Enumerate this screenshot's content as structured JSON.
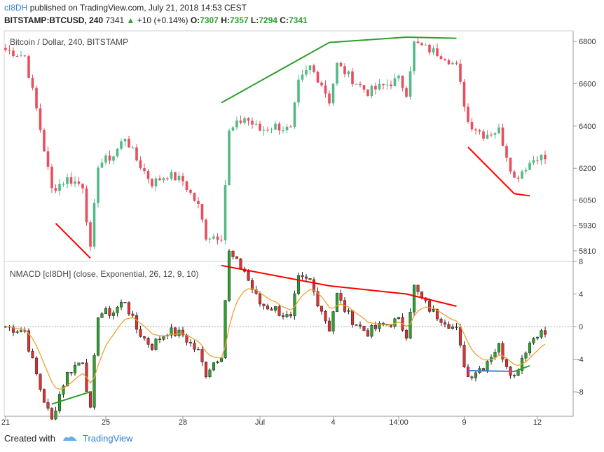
{
  "header": {
    "author": "cI8DH",
    "published_text": "published on TradingView.com, July 21, 2018 14:53 CEST",
    "symbol": "BITSTAMP:BTCUSD, 240",
    "last": "7341",
    "change": "+10 (+0.14%)",
    "o_label": "O:",
    "o": "7307",
    "h_label": "H:",
    "h": "7357",
    "l_label": "L:",
    "l": "7294",
    "c_label": "C:",
    "c": "7341"
  },
  "footer": {
    "created_with": "Created with",
    "brand": "TradingView"
  },
  "chart_data": [
    {
      "type": "candlestick",
      "title": "Bitcoin / Dollar, 240, BITSTAMP",
      "y_ticks": [
        5810,
        5930,
        6050,
        6200,
        6400,
        6600,
        6800
      ],
      "ylim": [
        5760,
        6850
      ],
      "x_ticks": [
        "21",
        "25",
        "28",
        "Jul",
        "4",
        "14:00",
        "9",
        "12"
      ],
      "trendlines": [
        {
          "color": "#ff0000",
          "from": [
            13,
            5940
          ],
          "to": [
            22,
            5775
          ]
        },
        {
          "color": "#2ca02c",
          "from": [
            56,
            6510
          ],
          "to": [
            84,
            6795
          ]
        },
        {
          "color": "#2ca02c",
          "from": [
            84,
            6795
          ],
          "to": [
            104,
            6820
          ]
        },
        {
          "color": "#2ca02c",
          "from": [
            104,
            6820
          ],
          "to": [
            117,
            6815
          ]
        },
        {
          "color": "#ff0000",
          "from": [
            120,
            6300
          ],
          "to": [
            132,
            6080
          ]
        },
        {
          "color": "#ff0000",
          "from": [
            132,
            6080
          ],
          "to": [
            136,
            6070
          ]
        }
      ]
    },
    {
      "type": "indicator",
      "title": "NMACD [cI8DH] (close, Exponential, 26, 12, 9, 10)",
      "y_ticks": [
        -8,
        -4,
        0,
        4,
        8
      ],
      "ylim": [
        -11,
        8
      ],
      "zero_line": 0,
      "trendlines": [
        {
          "color": "#ff0000",
          "from": [
            56,
            7.5
          ],
          "to": [
            84,
            5.0
          ]
        },
        {
          "color": "#ff0000",
          "from": [
            84,
            5.0
          ],
          "to": [
            104,
            4.0
          ]
        },
        {
          "color": "#ff0000",
          "from": [
            104,
            4.0
          ],
          "to": [
            117,
            2.5
          ]
        },
        {
          "color": "#2ca02c",
          "from": [
            12,
            -9.5
          ],
          "to": [
            22,
            -8.0
          ]
        },
        {
          "color": "#4a7fd4",
          "from": [
            120,
            -5.4
          ],
          "to": [
            132,
            -5.5
          ]
        },
        {
          "color": "#2ca02c",
          "from": [
            132,
            -5.5
          ],
          "to": [
            136,
            -4.8
          ]
        }
      ]
    }
  ]
}
